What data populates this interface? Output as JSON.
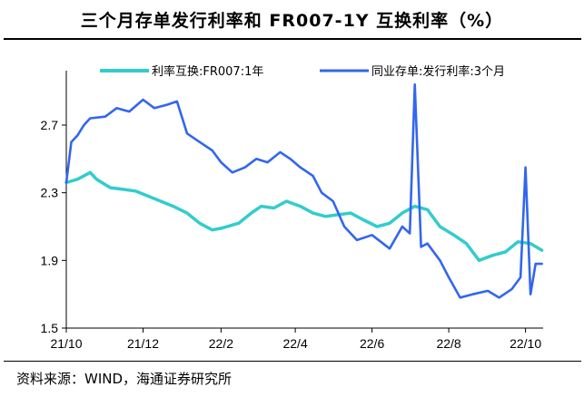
{
  "title": "三个月存单发行利率和 FR007-1Y 互换利率（%）",
  "source": "资料来源：WIND，海通证券研究所",
  "chart_data": {
    "type": "line",
    "title": "三个月存单发行利率和 FR007-1Y 互换利率（%）",
    "xlabel": "",
    "ylabel": "",
    "ylim": [
      1.5,
      3.0
    ],
    "yticks": [
      1.5,
      1.9,
      2.3,
      2.7
    ],
    "ytick_labels": [
      "1.5",
      "1.9",
      "2.3",
      "2.7"
    ],
    "xlim": [
      "2021-10-01",
      "2022-10-15"
    ],
    "xticks": [
      "2021-10-01",
      "2021-12-01",
      "2022-02-01",
      "2022-04-01",
      "2022-06-01",
      "2022-08-01",
      "2022-10-01"
    ],
    "xtick_labels": [
      "21/10",
      "21/12",
      "22/2",
      "22/4",
      "22/6",
      "22/8",
      "22/10"
    ],
    "grid": false,
    "legend": "top",
    "series": [
      {
        "name": "利率互换:FR007:1年",
        "color": "#33CCCC",
        "x": [
          "2021-10-01",
          "2021-10-10",
          "2021-10-20",
          "2021-10-25",
          "2021-11-05",
          "2021-11-15",
          "2021-11-25",
          "2021-12-05",
          "2021-12-15",
          "2021-12-25",
          "2022-01-05",
          "2022-01-15",
          "2022-01-25",
          "2022-02-01",
          "2022-02-15",
          "2022-02-25",
          "2022-03-05",
          "2022-03-15",
          "2022-03-25",
          "2022-04-05",
          "2022-04-15",
          "2022-04-25",
          "2022-05-05",
          "2022-05-15",
          "2022-05-25",
          "2022-06-05",
          "2022-06-15",
          "2022-06-25",
          "2022-07-05",
          "2022-07-15",
          "2022-07-25",
          "2022-08-05",
          "2022-08-15",
          "2022-08-25",
          "2022-09-05",
          "2022-09-15",
          "2022-09-25",
          "2022-10-05",
          "2022-10-14"
        ],
        "values": [
          2.36,
          2.38,
          2.42,
          2.38,
          2.33,
          2.32,
          2.31,
          2.28,
          2.25,
          2.22,
          2.18,
          2.12,
          2.08,
          2.09,
          2.12,
          2.18,
          2.22,
          2.21,
          2.25,
          2.22,
          2.18,
          2.16,
          2.17,
          2.18,
          2.14,
          2.1,
          2.12,
          2.18,
          2.22,
          2.2,
          2.1,
          2.05,
          2.0,
          1.9,
          1.93,
          1.95,
          2.01,
          2.0,
          1.96
        ]
      },
      {
        "name": "同业存单:发行利率:3个月",
        "color": "#3366EE",
        "x": [
          "2021-10-01",
          "2021-10-05",
          "2021-10-10",
          "2021-10-15",
          "2021-10-20",
          "2021-11-01",
          "2021-11-10",
          "2021-11-20",
          "2021-12-01",
          "2021-12-10",
          "2021-12-20",
          "2021-12-28",
          "2022-01-05",
          "2022-01-15",
          "2022-01-25",
          "2022-02-01",
          "2022-02-10",
          "2022-02-20",
          "2022-03-01",
          "2022-03-10",
          "2022-03-20",
          "2022-03-28",
          "2022-04-05",
          "2022-04-15",
          "2022-04-22",
          "2022-05-01",
          "2022-05-10",
          "2022-05-20",
          "2022-06-01",
          "2022-06-15",
          "2022-06-25",
          "2022-07-01",
          "2022-07-05",
          "2022-07-10",
          "2022-07-15",
          "2022-07-25",
          "2022-08-01",
          "2022-08-10",
          "2022-08-20",
          "2022-09-01",
          "2022-09-10",
          "2022-09-20",
          "2022-09-27",
          "2022-10-01",
          "2022-10-05",
          "2022-10-09",
          "2022-10-14"
        ],
        "values": [
          2.36,
          2.6,
          2.64,
          2.7,
          2.74,
          2.75,
          2.8,
          2.78,
          2.85,
          2.8,
          2.82,
          2.84,
          2.65,
          2.6,
          2.55,
          2.48,
          2.42,
          2.45,
          2.5,
          2.48,
          2.54,
          2.5,
          2.45,
          2.4,
          2.3,
          2.25,
          2.1,
          2.02,
          2.05,
          1.97,
          2.1,
          2.06,
          2.94,
          1.98,
          2.0,
          1.9,
          1.8,
          1.68,
          1.7,
          1.72,
          1.68,
          1.73,
          1.8,
          2.45,
          1.7,
          1.88,
          1.88
        ]
      }
    ]
  }
}
